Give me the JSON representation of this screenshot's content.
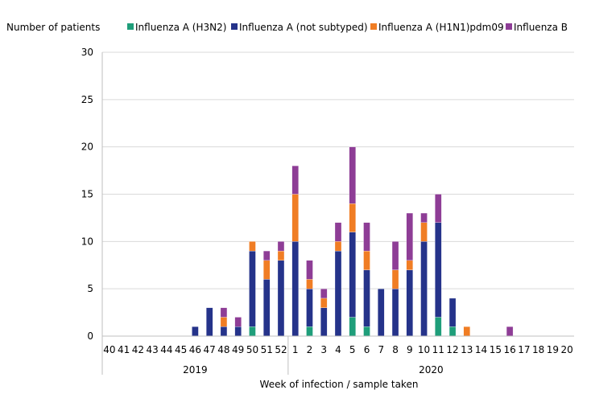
{
  "chart_data": {
    "type": "bar",
    "stacked": true,
    "ylabel": "Number of patients",
    "xlabel": "Week of infection / sample taken",
    "ylim": [
      0,
      30
    ],
    "yticks": [
      0,
      5,
      10,
      15,
      20,
      25,
      30
    ],
    "grid": true,
    "legend_position": "top",
    "categories": [
      "40",
      "41",
      "42",
      "43",
      "44",
      "45",
      "46",
      "47",
      "48",
      "49",
      "50",
      "51",
      "52",
      "1",
      "2",
      "3",
      "4",
      "5",
      "6",
      "7",
      "8",
      "9",
      "10",
      "11",
      "12",
      "13",
      "14",
      "15",
      "16",
      "17",
      "18",
      "19",
      "20"
    ],
    "year_groups": [
      {
        "label": "2019",
        "count": 13
      },
      {
        "label": "2020",
        "count": 20
      }
    ],
    "series": [
      {
        "name": "Influenza A (H3N2)",
        "color": "#1f9e7a",
        "values": [
          0,
          0,
          0,
          0,
          0,
          0,
          0,
          0,
          0,
          0,
          1,
          0,
          0,
          0,
          1,
          0,
          0,
          2,
          1,
          0,
          0,
          0,
          0,
          2,
          1,
          0,
          0,
          0,
          0,
          0,
          0,
          0,
          0
        ]
      },
      {
        "name": "Influenza A (not subtyped)",
        "color": "#25338a",
        "values": [
          0,
          0,
          0,
          0,
          0,
          0,
          1,
          3,
          1,
          1,
          8,
          6,
          8,
          10,
          4,
          3,
          9,
          9,
          6,
          5,
          5,
          7,
          10,
          10,
          3,
          0,
          0,
          0,
          0,
          0,
          0,
          0,
          0
        ]
      },
      {
        "name": "Influenza A (H1N1)pdm09",
        "color": "#f07d24",
        "values": [
          0,
          0,
          0,
          0,
          0,
          0,
          0,
          0,
          1,
          0,
          1,
          2,
          1,
          5,
          1,
          1,
          1,
          3,
          2,
          0,
          2,
          1,
          2,
          0,
          0,
          1,
          0,
          0,
          0,
          0,
          0,
          0,
          0
        ]
      },
      {
        "name": "Influenza B",
        "color": "#8e3d96",
        "values": [
          0,
          0,
          0,
          0,
          0,
          0,
          0,
          0,
          1,
          1,
          0,
          1,
          1,
          3,
          2,
          1,
          2,
          6,
          3,
          0,
          3,
          5,
          1,
          3,
          0,
          0,
          0,
          0,
          1,
          0,
          0,
          0,
          0
        ]
      }
    ]
  }
}
